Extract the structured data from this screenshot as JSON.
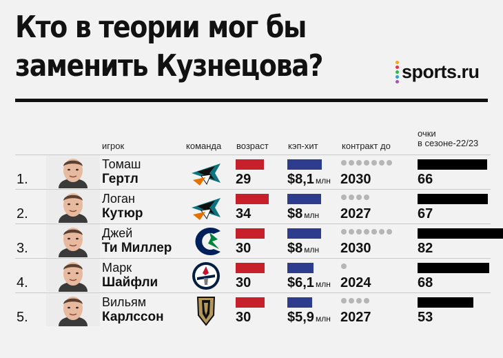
{
  "title_line1": "Кто в теории мог бы",
  "title_line2": "заменить Кузнецова?",
  "logo": {
    "text": "sports.ru",
    "dot_colors": [
      "#f5a623",
      "#e2364b",
      "#35b44a",
      "#29a3de",
      "#9b59b6"
    ]
  },
  "headers": {
    "player": "игрок",
    "team": "команда",
    "age": "возраст",
    "cap": "кэп-хит",
    "contract": "контракт до",
    "points_line1": "очки",
    "points_line2": "в сезоне-22/23"
  },
  "colors": {
    "age_bar": "#c8202a",
    "cap_bar": "#2e3c8e",
    "points_bar": "#000000",
    "contract_dot": "#b5b5b5"
  },
  "cap_unit": "млн",
  "players": [
    {
      "num": "1.",
      "first": "Томаш",
      "last": "Гертл",
      "team_icon": "sharks-logo-icon",
      "age": "29",
      "age_num": 29,
      "cap": "$8,1",
      "cap_num": 8.1,
      "contract": "2030",
      "contract_years": 7,
      "points": "66",
      "points_num": 66
    },
    {
      "num": "2.",
      "first": "Логан",
      "last": "Кутюр",
      "team_icon": "sharks-logo-icon",
      "age": "34",
      "age_num": 34,
      "cap": "$8",
      "cap_num": 8.0,
      "contract": "2027",
      "contract_years": 4,
      "points": "67",
      "points_num": 67
    },
    {
      "num": "3.",
      "first": "Джей",
      "last": "Ти Миллер",
      "team_icon": "canucks-logo-icon",
      "age": "30",
      "age_num": 30,
      "cap": "$8",
      "cap_num": 8.0,
      "contract": "2030",
      "contract_years": 7,
      "points": "82",
      "points_num": 82
    },
    {
      "num": "4.",
      "first": "Марк",
      "last": "Шайфли",
      "team_icon": "jets-logo-icon",
      "age": "30",
      "age_num": 30,
      "cap": "$6,1",
      "cap_num": 6.1,
      "contract": "2024",
      "contract_years": 1,
      "points": "68",
      "points_num": 68
    },
    {
      "num": "5.",
      "first": "Вильям",
      "last": "Карлссон",
      "team_icon": "golden-knights-logo-icon",
      "age": "30",
      "age_num": 30,
      "cap": "$5,9",
      "cap_num": 5.9,
      "contract": "2027",
      "contract_years": 4,
      "points": "53",
      "points_num": 53
    }
  ]
}
